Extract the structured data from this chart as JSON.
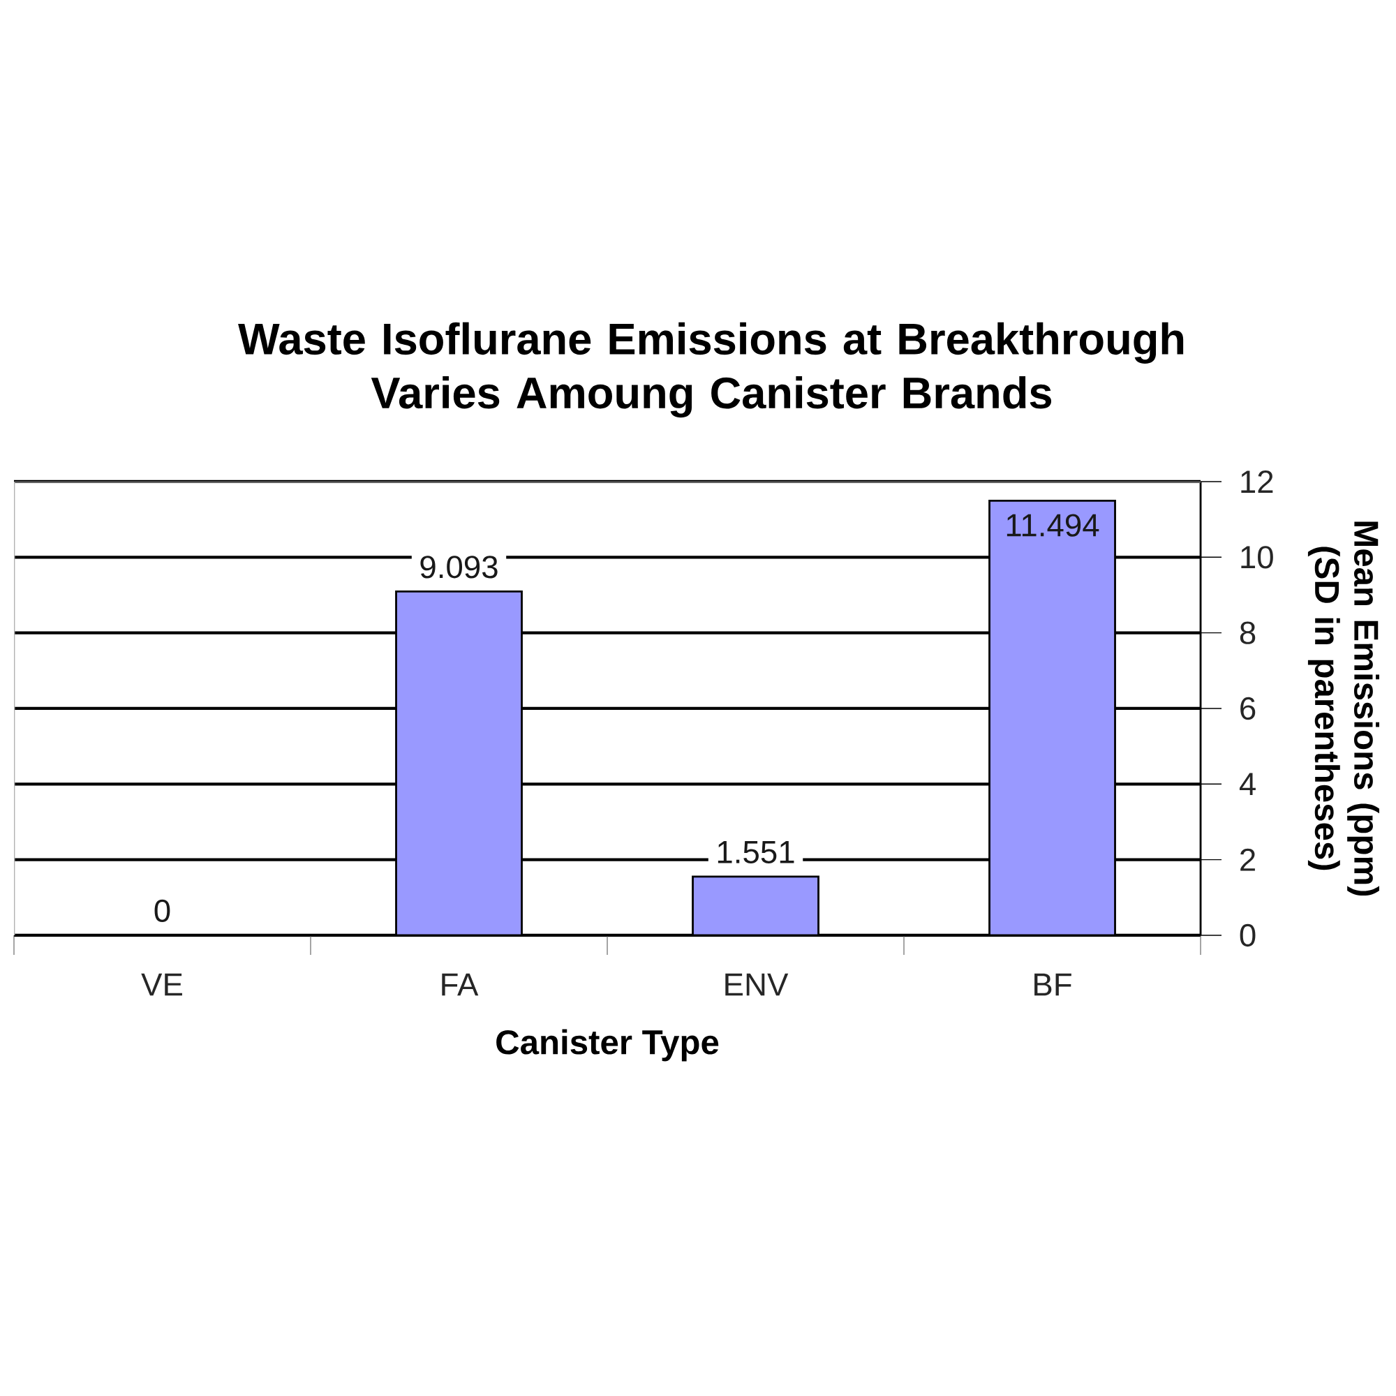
{
  "chart_data": {
    "type": "bar",
    "title": "Waste Isoflurane Emissions at Breakthrough Varies Amoung Canister Brands",
    "xlabel": "Canister Type",
    "ylabel": "Mean Emissions (ppm) (SD in parentheses)",
    "categories": [
      "VE",
      "FA",
      "ENV",
      "BF"
    ],
    "values": [
      0,
      9.093,
      1.551,
      11.494
    ],
    "data_labels": true,
    "color": "#9999ff",
    "ylim": [
      0,
      12
    ],
    "yticks": [
      0,
      2,
      4,
      6,
      8,
      10,
      12
    ],
    "grid": "y"
  }
}
